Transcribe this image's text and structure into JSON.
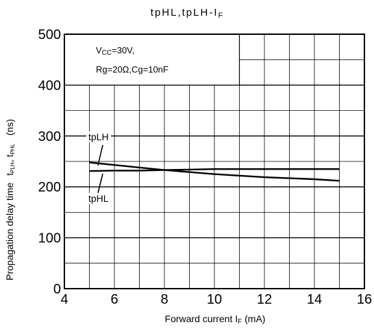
{
  "title": {
    "main": "tpHL,tpLH-I",
    "sub": "F"
  },
  "conditions": {
    "line1_prefix": "V",
    "line1_sub": "CC",
    "line1_suffix": "=30V,",
    "line2": "Rg=20Ω,Cg=10nF"
  },
  "x_axis": {
    "label_main": "Forward current I",
    "label_sub": "F",
    "label_unit": " (mA)"
  },
  "y_axis": {
    "label_main": "Propagation delay time",
    "t1": "t",
    "t1_sub": "PLH",
    "sep": ", ",
    "t2": "t",
    "t2_sub": "PHL",
    "unit": "(ns)"
  },
  "chart_data": {
    "type": "line",
    "xlim": [
      4,
      16
    ],
    "ylim": [
      0,
      500
    ],
    "x_ticks": [
      4,
      6,
      8,
      10,
      12,
      14,
      16
    ],
    "y_ticks": [
      0,
      100,
      200,
      300,
      400,
      500
    ],
    "x_minor_step": 1,
    "y_minor_step": 50,
    "grid": true,
    "series": [
      {
        "name": "tpLH",
        "x": [
          5,
          6,
          7,
          8,
          9,
          10,
          11,
          12,
          13,
          14,
          15
        ],
        "y": [
          248,
          243,
          238,
          233,
          229,
          225,
          222,
          219,
          217,
          215,
          212
        ]
      },
      {
        "name": "tpHL",
        "x": [
          5,
          6,
          7,
          8,
          9,
          10,
          11,
          12,
          13,
          14,
          15
        ],
        "y": [
          231,
          232,
          232,
          233,
          234,
          235,
          235,
          235,
          235,
          235,
          235
        ]
      }
    ]
  }
}
